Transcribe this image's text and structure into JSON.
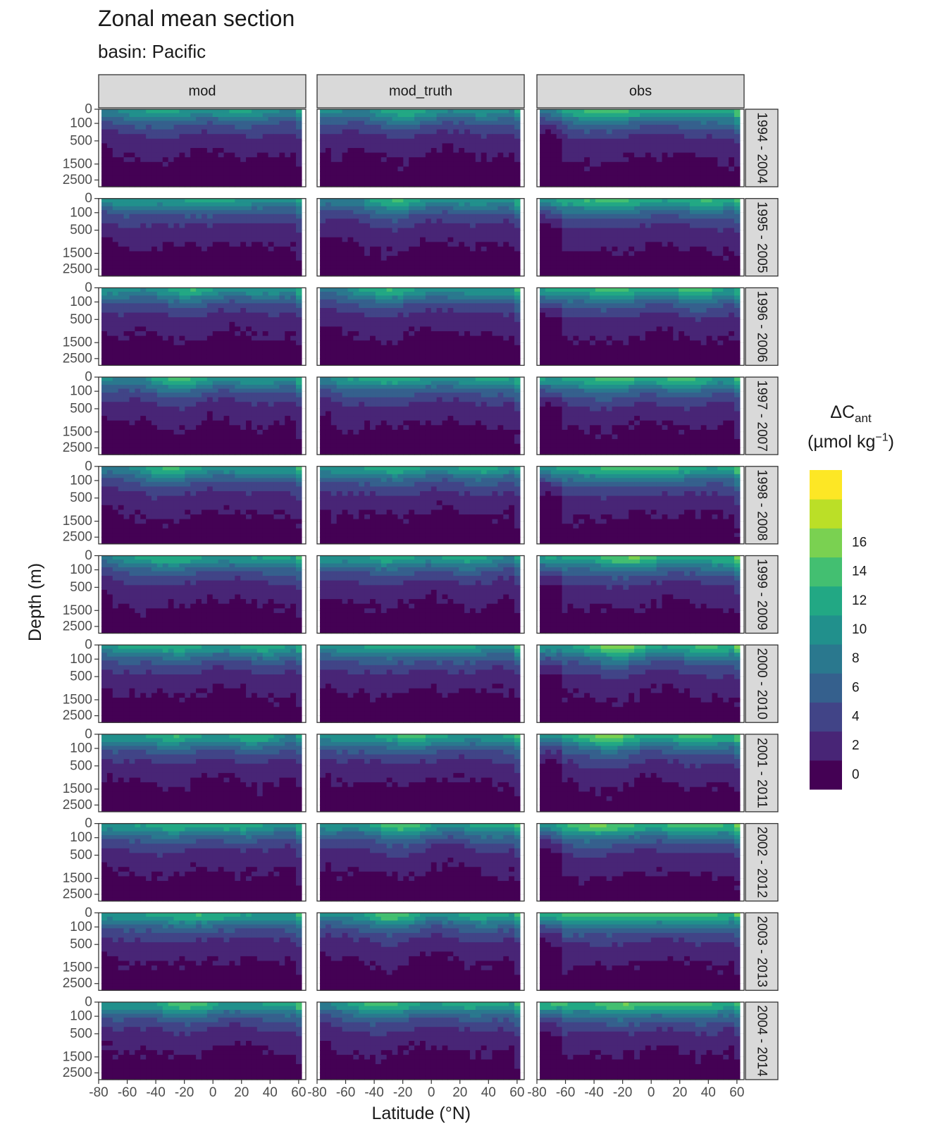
{
  "chart_data": {
    "type": "heatmap",
    "title": "Zonal mean section",
    "subtitle": "basin: Pacific",
    "xlabel": "Latitude (°N)",
    "ylabel": "Depth (m)",
    "x_ticks": [
      -80,
      -60,
      -40,
      -20,
      0,
      20,
      40,
      60
    ],
    "y_ticks": [
      0,
      100,
      500,
      1500,
      2500
    ],
    "xlim": [
      -80,
      65
    ],
    "ylim": [
      0,
      3000
    ],
    "y_scale": "sqrt",
    "grid": true,
    "legend_position": "right",
    "columns": [
      "mod",
      "mod_truth",
      "obs"
    ],
    "rows": [
      "1994 - 2004",
      "1995 - 2005",
      "1996 - 2006",
      "1997 - 2007",
      "1998 - 2008",
      "1999 - 2009",
      "2000 - 2010",
      "2001 - 2011",
      "2002 - 2012",
      "2003 - 2013",
      "2004 - 2014"
    ],
    "colorbar": {
      "title_main": "ΔC",
      "title_sub": "ant",
      "title_units": "(µmol kg",
      "title_exp": "−1",
      "title_close": ")",
      "tick_labels": [
        "0",
        "2",
        "4",
        "6",
        "8",
        "10",
        "12",
        "14",
        "16"
      ],
      "levels": [
        -2,
        0,
        2,
        4,
        6,
        8,
        10,
        12,
        14,
        16,
        18
      ],
      "colors": [
        "#440154",
        "#482576",
        "#414487",
        "#35608D",
        "#2A788E",
        "#21908C",
        "#22A884",
        "#43BF71",
        "#7AD151",
        "#BBDF27",
        "#FDE725"
      ]
    }
  }
}
